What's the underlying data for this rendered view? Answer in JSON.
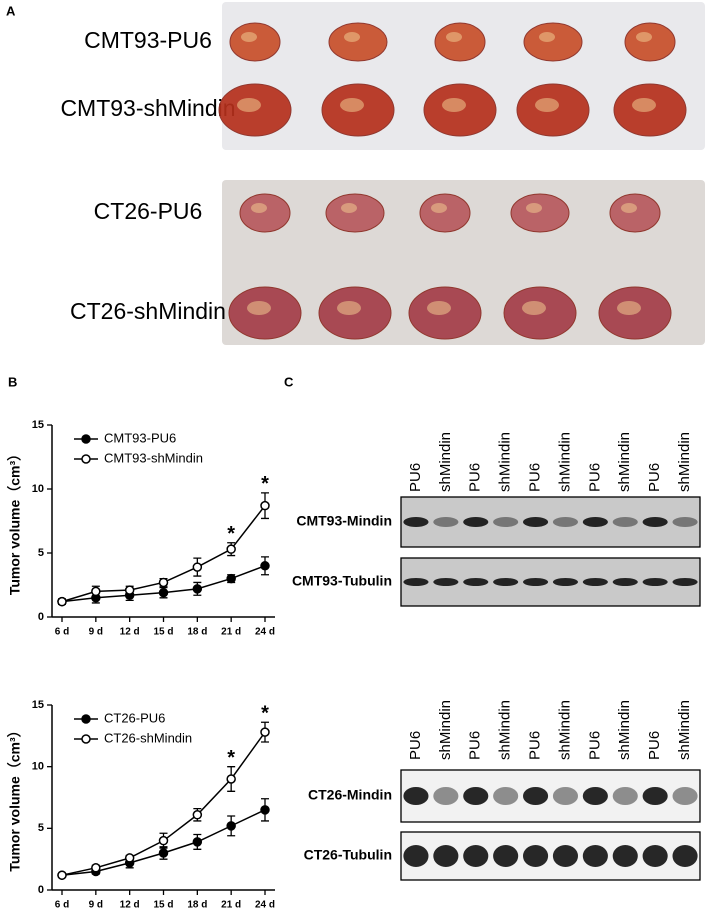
{
  "panels": {
    "a": {
      "label": "A",
      "photos": [
        {
          "rows": [
            "CMT93-PU6",
            "CMT93-shMindin"
          ]
        },
        {
          "rows": [
            "CT26-PU6",
            "CT26-shMindin"
          ]
        }
      ]
    },
    "b": {
      "label": "B"
    },
    "c": {
      "label": "C",
      "blots": [
        {
          "lanes": [
            "PU6",
            "shMindin",
            "PU6",
            "shMindin",
            "PU6",
            "shMindin",
            "PU6",
            "shMindin",
            "PU6",
            "shMindin"
          ],
          "rows": [
            "CMT93-Mindin",
            "CMT93-Tubulin"
          ]
        },
        {
          "lanes": [
            "PU6",
            "shMindin",
            "PU6",
            "shMindin",
            "PU6",
            "shMindin",
            "PU6",
            "shMindin",
            "PU6",
            "shMindin"
          ],
          "rows": [
            "CT26-Mindin",
            "CT26-Tubulin"
          ]
        }
      ]
    }
  },
  "chart_data": [
    {
      "type": "line",
      "y_label": "Tumor volume（cm³）",
      "categories": [
        "6 d",
        "9 d",
        "12 d",
        "15 d",
        "18 d",
        "21 d",
        "24 d"
      ],
      "ylim": [
        0,
        15
      ],
      "yticks": [
        0,
        5,
        10,
        15
      ],
      "legend": "upper left",
      "series": [
        {
          "name": "CMT93-PU6",
          "color": "#000000",
          "marker": "filled",
          "values": [
            1.2,
            1.5,
            1.7,
            1.9,
            2.2,
            3.0,
            4.0
          ],
          "errors": [
            0.2,
            0.4,
            0.4,
            0.4,
            0.5,
            0.3,
            0.7
          ],
          "markers": [
            null,
            null,
            null,
            null,
            null,
            null,
            null
          ]
        },
        {
          "name": "CMT93-shMindin",
          "color": "#000000",
          "marker": "open",
          "values": [
            1.2,
            2.0,
            2.1,
            2.7,
            3.9,
            5.3,
            8.7
          ],
          "errors": [
            0.2,
            0.4,
            0.3,
            0.3,
            0.7,
            0.5,
            1.0
          ],
          "markers": [
            null,
            null,
            null,
            null,
            null,
            "*",
            "*"
          ]
        }
      ]
    },
    {
      "type": "line",
      "y_label": "Tumor volume（cm³）",
      "categories": [
        "6 d",
        "9 d",
        "12 d",
        "15 d",
        "18 d",
        "21 d",
        "24 d"
      ],
      "ylim": [
        0,
        15
      ],
      "yticks": [
        0,
        5,
        10,
        15
      ],
      "legend": "upper left",
      "series": [
        {
          "name": "CT26-PU6",
          "color": "#000000",
          "marker": "filled",
          "values": [
            1.2,
            1.5,
            2.2,
            3.0,
            3.9,
            5.2,
            6.5
          ],
          "errors": [
            0.1,
            0.2,
            0.4,
            0.5,
            0.6,
            0.8,
            0.9
          ],
          "markers": [
            null,
            null,
            null,
            null,
            null,
            null,
            null
          ]
        },
        {
          "name": "CT26-shMindin",
          "color": "#000000",
          "marker": "open",
          "values": [
            1.2,
            1.8,
            2.6,
            4.0,
            6.1,
            9.0,
            12.8
          ],
          "errors": [
            0.1,
            0.2,
            0.2,
            0.6,
            0.5,
            1.0,
            0.8
          ],
          "markers": [
            null,
            null,
            null,
            null,
            null,
            "*",
            "*"
          ]
        }
      ]
    }
  ]
}
